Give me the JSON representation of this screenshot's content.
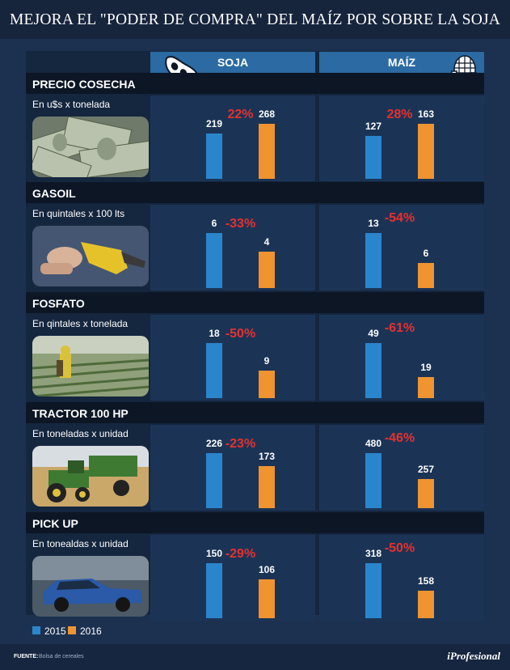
{
  "title": "MEJORA EL \"PODER DE COMPRA\" DEL MAÍZ POR SOBRE LA SOJA",
  "columns": [
    "SOJA",
    "MAÍZ"
  ],
  "legend": [
    "2015",
    "2016"
  ],
  "source_label": "FUENTE:",
  "source_text": "Bolsa de cereales",
  "brand": "iProfesional",
  "colors": {
    "y2015": "#2a86cc",
    "y2016": "#ef9431",
    "pct": "#e6302f"
  },
  "icons": {
    "soja": "soybean-pod-icon",
    "maiz": "corn-cob-icon"
  },
  "chart_data": {
    "type": "bar",
    "categories": [
      "2015",
      "2016"
    ],
    "legend_position": "bottom-left",
    "panels": [
      {
        "title": "PRECIO COSECHA",
        "subtitle": "En u$s x tonelada",
        "image": "dollar-bills-photo",
        "soja": {
          "values": [
            219,
            268
          ],
          "pct": "22%"
        },
        "maiz": {
          "values": [
            127,
            163
          ],
          "pct": "28%"
        }
      },
      {
        "title": "GASOIL",
        "subtitle": "En quintales x 100 lts",
        "image": "fuel-nozzle-photo",
        "soja": {
          "values": [
            6,
            4
          ],
          "pct": "-33%"
        },
        "maiz": {
          "values": [
            13,
            6
          ],
          "pct": "-54%"
        }
      },
      {
        "title": "FOSFATO",
        "subtitle": "En qintales x tonelada",
        "image": "field-spraying-photo",
        "soja": {
          "values": [
            18,
            9
          ],
          "pct": "-50%"
        },
        "maiz": {
          "values": [
            49,
            19
          ],
          "pct": "-61%"
        }
      },
      {
        "title": "TRACTOR 100 HP",
        "subtitle": "En toneladas x unidad",
        "image": "tractor-photo",
        "soja": {
          "values": [
            226,
            173
          ],
          "pct": "-23%"
        },
        "maiz": {
          "values": [
            480,
            257
          ],
          "pct": "-46%"
        }
      },
      {
        "title": "PICK UP",
        "subtitle": "En tonealdas x unidad",
        "image": "pickup-truck-photo",
        "soja": {
          "values": [
            150,
            106
          ],
          "pct": "-29%"
        },
        "maiz": {
          "values": [
            318,
            158
          ],
          "pct": "-50%"
        }
      }
    ]
  }
}
